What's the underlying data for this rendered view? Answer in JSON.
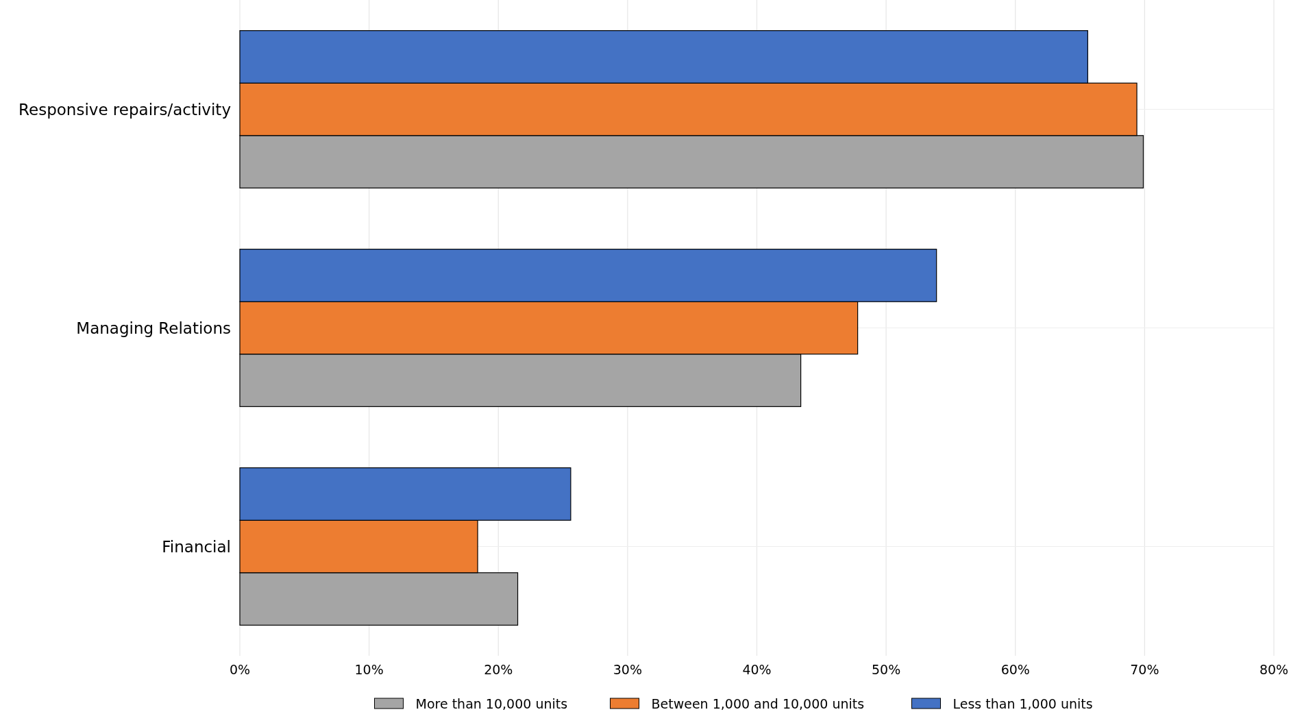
{
  "chart_data": {
    "type": "bar",
    "orientation": "horizontal",
    "categories": [
      "Responsive repairs/activity",
      "Managing Relations",
      "Financial"
    ],
    "series": [
      {
        "name": "More than 10,000 units",
        "color": "#a5a5a5",
        "values": [
          69.9,
          43.4,
          21.5
        ]
      },
      {
        "name": "Between 1,000 and 10,000 units",
        "color": "#ed7d31",
        "values": [
          69.4,
          47.8,
          18.4
        ]
      },
      {
        "name": "Less than 1,000 units",
        "color": "#4472c4",
        "values": [
          65.6,
          53.9,
          25.6
        ]
      }
    ],
    "xlim": [
      0,
      80
    ],
    "xticks": [
      {
        "value": 0,
        "label": "0%"
      },
      {
        "value": 10,
        "label": "10%"
      },
      {
        "value": 20,
        "label": "20%"
      },
      {
        "value": 30,
        "label": "30%"
      },
      {
        "value": 40,
        "label": "40%"
      },
      {
        "value": 50,
        "label": "50%"
      },
      {
        "value": 60,
        "label": "60%"
      },
      {
        "value": 70,
        "label": "70%"
      },
      {
        "value": 80,
        "label": "80%"
      }
    ],
    "grid": true,
    "legend": "bottom"
  }
}
